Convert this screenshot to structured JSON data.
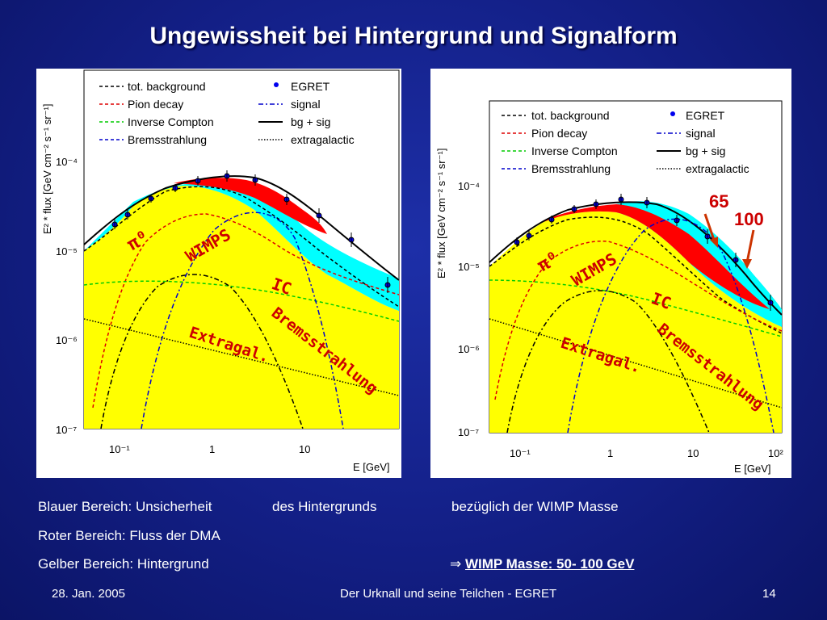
{
  "slide": {
    "title": "Ungewissheit bei Hintergrund und Signalform",
    "captions": {
      "row1_a": "Blauer Bereich: Unsicherheit",
      "row1_b": "des Hintergrunds",
      "row1_c": "bezüglich der WIMP Masse",
      "row2": "Roter Bereich: Fluss der DMA",
      "row3": "Gelber Bereich: Hintergrund",
      "arrow_symbol": "⇒",
      "conclusion": "WIMP Masse: 50- 100 GeV"
    },
    "footer": {
      "date": "28. Jan. 2005",
      "center": "Der Urknall und seine Teilchen - EGRET",
      "page": "14"
    }
  },
  "plot_common": {
    "y_axis_label": "E² * flux [GeV cm⁻² s⁻¹ sr⁻¹]",
    "x_axis_label": "E [GeV]",
    "y_ticks": [
      "10⁻⁴",
      "10⁻⁵",
      "10⁻⁶",
      "10⁻⁷"
    ],
    "x_ticks": [
      "10⁻¹",
      "1",
      "10",
      "10²"
    ],
    "legend": [
      "tot. background",
      "Pion decay",
      "Inverse Compton",
      "Bremsstrahlung",
      "EGRET",
      "signal",
      "bg + sig",
      "extragalactic"
    ],
    "annotations": {
      "pion": "π⁰",
      "wimps": "WIMPS",
      "ic": "IC",
      "brems": "Bremsstrahlung",
      "extragal": "Extragal."
    },
    "colors": {
      "yellow_region": "#ffff00",
      "red_region": "#ff0000",
      "cyan_region": "#00ffff",
      "annotation": "#cc0000"
    }
  },
  "right_plot": {
    "mass_labels": [
      "65",
      "100"
    ]
  },
  "chart_data": [
    {
      "type": "line",
      "x_scale": "log",
      "y_scale": "log",
      "xlabel": "E [GeV]",
      "ylabel": "E² * flux [GeV cm⁻² s⁻¹ sr⁻¹]",
      "series": [
        {
          "name": "EGRET",
          "x": [
            0.07,
            0.1,
            0.2,
            0.4,
            0.9,
            1.5,
            3,
            7,
            20,
            40
          ],
          "y": [
            1.4e-05,
            1.7e-05,
            2.8e-05,
            3.3e-05,
            3.5e-05,
            3.6e-05,
            3.5e-05,
            3e-05,
            1.8e-05,
            9e-06
          ]
        }
      ]
    },
    {
      "type": "line",
      "x_scale": "log",
      "y_scale": "log",
      "xlabel": "E [GeV]",
      "ylabel": "E² * flux [GeV cm⁻² s⁻¹ sr⁻¹]",
      "series": [
        {
          "name": "EGRET",
          "x": [
            0.07,
            0.1,
            0.2,
            0.4,
            0.9,
            1.5,
            3,
            7,
            20,
            40
          ],
          "y": [
            1.4e-05,
            1.7e-05,
            2.8e-05,
            3.3e-05,
            3.5e-05,
            3.6e-05,
            3.5e-05,
            3e-05,
            1.8e-05,
            9e-06
          ]
        }
      ]
    }
  ]
}
